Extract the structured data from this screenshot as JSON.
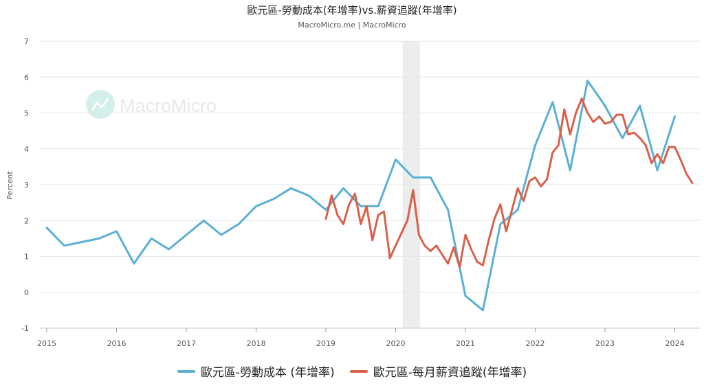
{
  "title": "歐元區-勞動成本(年增率)vs.薪資追蹤(年增率)",
  "subtitle": "MacroMicro.me | MacroMicro",
  "watermark": "MacroMicro",
  "colors": {
    "series1": "#5aafd6",
    "series2": "#d9604a",
    "recession": "#eceeee",
    "grid": "#e6e6e6"
  },
  "chart_data": {
    "type": "line",
    "title": "歐元區-勞動成本(年增率)vs.薪資追蹤(年增率)",
    "ylabel": "Percent",
    "xlabel": "",
    "ylim": [
      -1,
      7
    ],
    "yticks": [
      "7",
      "6",
      "5",
      "4",
      "3",
      "2",
      "1",
      "0",
      "-1"
    ],
    "xlim": [
      2015,
      2024.35
    ],
    "xticks": [
      "2015",
      "2016",
      "2017",
      "2018",
      "2019",
      "2020",
      "2021",
      "2022",
      "2023",
      "2024"
    ],
    "grid": true,
    "legend_position": "bottom",
    "shaded_period": [
      2020.1,
      2020.35
    ],
    "series": [
      {
        "name": "歐元區-勞動成本 (年增率)",
        "x": [
          2015.0,
          2015.25,
          2015.5,
          2015.75,
          2016.0,
          2016.25,
          2016.5,
          2016.75,
          2017.0,
          2017.25,
          2017.5,
          2017.75,
          2018.0,
          2018.25,
          2018.5,
          2018.75,
          2019.0,
          2019.25,
          2019.5,
          2019.75,
          2020.0,
          2020.25,
          2020.5,
          2020.75,
          2021.0,
          2021.25,
          2021.5,
          2021.75,
          2022.0,
          2022.25,
          2022.5,
          2022.75,
          2023.0,
          2023.25,
          2023.5,
          2023.75,
          2024.0
        ],
        "values": [
          1.8,
          1.3,
          1.4,
          1.5,
          1.7,
          0.8,
          1.5,
          1.2,
          1.6,
          2.0,
          1.6,
          1.9,
          2.4,
          2.6,
          2.9,
          2.7,
          2.3,
          2.9,
          2.4,
          2.4,
          3.7,
          3.2,
          3.2,
          2.3,
          -0.1,
          -0.5,
          1.9,
          2.3,
          4.1,
          5.3,
          3.4,
          5.9,
          5.2,
          4.3,
          5.2,
          3.4,
          4.9
        ]
      },
      {
        "name": "歐元區-每月薪資追蹤(年增率)",
        "x": [
          2019.0,
          2019.083,
          2019.167,
          2019.25,
          2019.333,
          2019.417,
          2019.5,
          2019.583,
          2019.667,
          2019.75,
          2019.833,
          2019.917,
          2020.0,
          2020.083,
          2020.167,
          2020.25,
          2020.333,
          2020.417,
          2020.5,
          2020.583,
          2020.667,
          2020.75,
          2020.833,
          2020.917,
          2021.0,
          2021.083,
          2021.167,
          2021.25,
          2021.333,
          2021.417,
          2021.5,
          2021.583,
          2021.667,
          2021.75,
          2021.833,
          2021.917,
          2022.0,
          2022.083,
          2022.167,
          2022.25,
          2022.333,
          2022.417,
          2022.5,
          2022.583,
          2022.667,
          2022.75,
          2022.833,
          2022.917,
          2023.0,
          2023.083,
          2023.167,
          2023.25,
          2023.333,
          2023.417,
          2023.5,
          2023.583,
          2023.667,
          2023.75,
          2023.833,
          2023.917,
          2024.0,
          2024.083,
          2024.167,
          2024.25
        ],
        "values": [
          2.05,
          2.7,
          2.15,
          1.9,
          2.45,
          2.75,
          1.9,
          2.4,
          1.45,
          2.15,
          2.25,
          0.95,
          1.3,
          1.65,
          2.0,
          2.85,
          1.6,
          1.3,
          1.15,
          1.3,
          1.05,
          0.8,
          1.25,
          0.7,
          1.6,
          1.2,
          0.85,
          0.75,
          1.45,
          2.05,
          2.45,
          1.7,
          2.3,
          2.9,
          2.55,
          3.1,
          3.2,
          2.95,
          3.15,
          3.9,
          4.1,
          5.1,
          4.4,
          5.0,
          5.4,
          5.0,
          4.75,
          4.9,
          4.7,
          4.75,
          4.95,
          4.95,
          4.4,
          4.45,
          4.3,
          4.1,
          3.6,
          3.85,
          3.6,
          4.05,
          4.05,
          3.7,
          3.3,
          3.05
        ]
      }
    ]
  }
}
